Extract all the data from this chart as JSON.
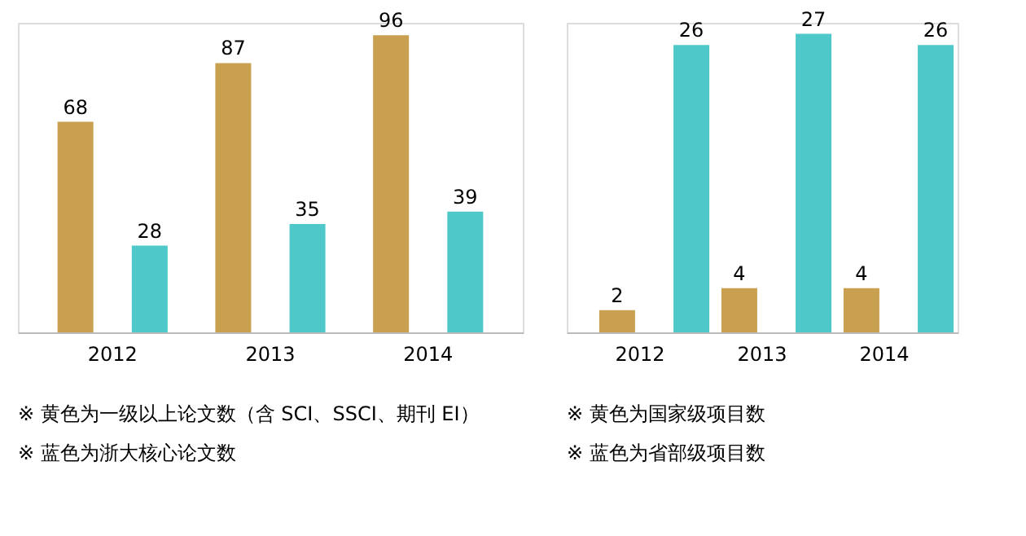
{
  "chart_data": [
    {
      "type": "bar",
      "categories": [
        "2012",
        "2013",
        "2014"
      ],
      "series": [
        {
          "color": "#c8a050",
          "values": [
            68,
            87,
            96
          ]
        },
        {
          "color": "#4ec8c8",
          "values": [
            28,
            35,
            39
          ]
        }
      ],
      "data_labels": true,
      "grid": false,
      "legend": false,
      "tick_labels": "x",
      "annotations": [
        "※ 黄色为一级以上论文数（含 SCI、SSCI、期刊 EI）",
        "※ 蓝色为浙大核心论文数"
      ]
    },
    {
      "type": "bar",
      "categories": [
        "2012",
        "2013",
        "2014"
      ],
      "series": [
        {
          "color": "#c8a050",
          "values": [
            2,
            4,
            4
          ]
        },
        {
          "color": "#4ec8c8",
          "values": [
            26,
            27,
            26
          ]
        }
      ],
      "data_labels": true,
      "grid": false,
      "legend": false,
      "tick_labels": "x",
      "annotations": [
        "※ 黄色为国家级项目数",
        "※ 蓝色为省部级项目数"
      ]
    }
  ]
}
